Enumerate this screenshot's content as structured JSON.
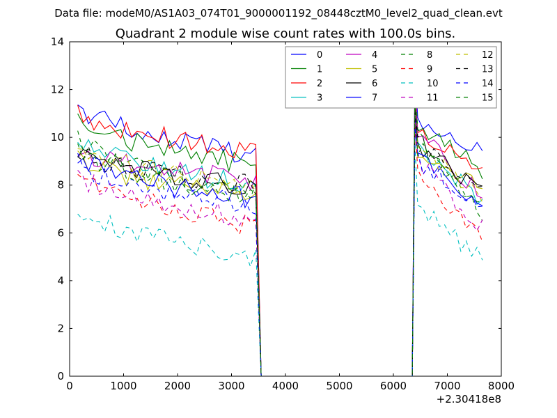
{
  "figure": {
    "suptitle": "Data file: modeM0/AS1A03_074T01_9000001192_08448cztM0_level2_quad_clean.evt"
  },
  "chart_data": {
    "type": "line",
    "title": "Quadrant 2 module wise count rates with 100.0s bins.",
    "xlabel": "",
    "ylabel": "",
    "x_offset_label": "+2.30418e8",
    "xlim": [
      0,
      8000
    ],
    "ylim": [
      0,
      14
    ],
    "xticks": [
      0,
      1000,
      2000,
      3000,
      4000,
      5000,
      6000,
      7000,
      8000
    ],
    "yticks": [
      0,
      2,
      4,
      6,
      8,
      10,
      12,
      14
    ],
    "legend_position": "top-right",
    "segments": [
      {
        "x_start": 150,
        "x_end": 3550,
        "step": 100
      },
      {
        "x_start": 3550,
        "x_end": 6350,
        "step": 100,
        "note": "zero gap"
      },
      {
        "x_start": 6350,
        "x_end": 7650,
        "step": 100
      }
    ],
    "series": [
      {
        "name": "0",
        "color": "#0000ff",
        "dash": "solid",
        "a": 11.5,
        "b": 9.2,
        "p": 13.0,
        "c": 10.8,
        "d": 9.3,
        "seed": 1
      },
      {
        "name": "1",
        "color": "#008000",
        "dash": "solid",
        "a": 11.0,
        "b": 8.8,
        "p": 12.2,
        "c": 10.5,
        "d": 8.6,
        "seed": 2
      },
      {
        "name": "2",
        "color": "#ff0000",
        "dash": "solid",
        "a": 11.2,
        "b": 9.4,
        "p": 12.0,
        "c": 10.3,
        "d": 8.5,
        "seed": 3
      },
      {
        "name": "3",
        "color": "#00bfbf",
        "dash": "solid",
        "a": 10.0,
        "b": 8.0,
        "p": 11.5,
        "c": 9.8,
        "d": 7.2,
        "seed": 4
      },
      {
        "name": "4",
        "color": "#bf00bf",
        "dash": "solid",
        "a": 9.6,
        "b": 8.2,
        "p": 13.0,
        "c": 10.2,
        "d": 7.6,
        "seed": 5
      },
      {
        "name": "5",
        "color": "#bfbf00",
        "dash": "solid",
        "a": 9.2,
        "b": 7.6,
        "p": 11.2,
        "c": 9.4,
        "d": 7.8,
        "seed": 6
      },
      {
        "name": "6",
        "color": "#000000",
        "dash": "solid",
        "a": 9.6,
        "b": 7.9,
        "p": 11.0,
        "c": 9.6,
        "d": 7.8,
        "seed": 7
      },
      {
        "name": "7",
        "color": "#0000ff",
        "dash": "solid",
        "a": 9.2,
        "b": 7.4,
        "p": 10.8,
        "c": 9.3,
        "d": 7.2,
        "seed": 8
      },
      {
        "name": "8",
        "color": "#008000",
        "dash": "dashed",
        "a": 10.2,
        "b": 7.6,
        "p": 12.4,
        "c": 10.0,
        "d": 6.8,
        "seed": 9
      },
      {
        "name": "9",
        "color": "#ff0000",
        "dash": "dashed",
        "a": 8.9,
        "b": 6.2,
        "p": 10.6,
        "c": 8.5,
        "d": 5.7,
        "seed": 10
      },
      {
        "name": "10",
        "color": "#00bfbf",
        "dash": "dashed",
        "a": 7.2,
        "b": 5.0,
        "p": 9.8,
        "c": 7.2,
        "d": 4.8,
        "seed": 11
      },
      {
        "name": "11",
        "color": "#bf00bf",
        "dash": "dashed",
        "a": 8.5,
        "b": 6.6,
        "p": 11.0,
        "c": 9.0,
        "d": 6.2,
        "seed": 12
      },
      {
        "name": "12",
        "color": "#bfbf00",
        "dash": "dashed",
        "a": 9.8,
        "b": 7.9,
        "p": 11.6,
        "c": 9.6,
        "d": 7.6,
        "seed": 13
      },
      {
        "name": "13",
        "color": "#000000",
        "dash": "dashed",
        "a": 9.5,
        "b": 8.0,
        "p": 11.2,
        "c": 9.8,
        "d": 7.9,
        "seed": 14
      },
      {
        "name": "14",
        "color": "#0000ff",
        "dash": "dashed",
        "a": 9.0,
        "b": 7.2,
        "p": 10.4,
        "c": 9.0,
        "d": 7.0,
        "seed": 15
      },
      {
        "name": "15",
        "color": "#008000",
        "dash": "dashed",
        "a": 9.8,
        "b": 7.4,
        "p": 11.8,
        "c": 9.6,
        "d": 7.1,
        "seed": 16
      }
    ]
  }
}
